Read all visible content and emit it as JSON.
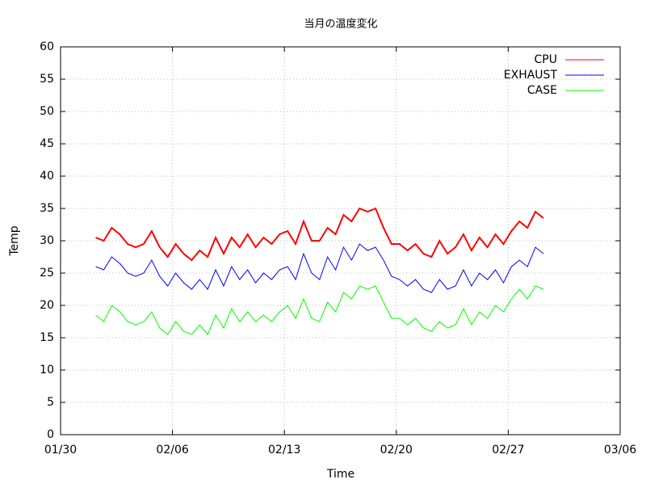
{
  "chart_data": {
    "type": "line",
    "title": "当月の温度変化",
    "x_label": "Time",
    "y_label": "Temp",
    "x": [
      2.2,
      2.7,
      3.2,
      3.7,
      4.2,
      4.7,
      5.2,
      5.7,
      6.2,
      6.7,
      7.2,
      7.7,
      8.2,
      8.7,
      9.2,
      9.7,
      10.2,
      10.7,
      11.2,
      11.7,
      12.2,
      12.7,
      13.2,
      13.7,
      14.2,
      14.7,
      15.2,
      15.7,
      16.2,
      16.7,
      17.2,
      17.7,
      18.2,
      18.7,
      19.2,
      19.7,
      20.2,
      20.7,
      21.2,
      21.7,
      22.2,
      22.7,
      23.2,
      23.7,
      24.2,
      24.7,
      25.2,
      25.7,
      26.2,
      26.7,
      27.2,
      27.7,
      28.2,
      28.7,
      29.2,
      29.7,
      30.2
    ],
    "series": [
      {
        "name": "CPU",
        "color": "#ff0000",
        "values": [
          30.5,
          30,
          32,
          31,
          29.5,
          29,
          29.5,
          31.5,
          29,
          27.5,
          29.5,
          28,
          27,
          28.5,
          27.5,
          30.5,
          28,
          30.5,
          29,
          31,
          29,
          30.5,
          29.5,
          31,
          31.5,
          29.5,
          33,
          30,
          30,
          32,
          31,
          34,
          33,
          35,
          34.5,
          35,
          32,
          29.5,
          29.5,
          28.5,
          29.5,
          28,
          27.5,
          30,
          28,
          29,
          31,
          28.5,
          30.5,
          29,
          31,
          29.5,
          31.5,
          33,
          32,
          34.5,
          33.5
        ]
      },
      {
        "name": "EXHAUST",
        "color": "#0000ff",
        "values": [
          26,
          25.5,
          27.5,
          26.5,
          25,
          24.5,
          25,
          27,
          24.5,
          23,
          25,
          23.5,
          22.5,
          24,
          22.5,
          25.5,
          23,
          26,
          24,
          25.5,
          23.5,
          25,
          24,
          25.5,
          26,
          24,
          28,
          25,
          24,
          27.5,
          25.5,
          29,
          27,
          29.5,
          28.5,
          29,
          27,
          24.5,
          24,
          23,
          24,
          22.5,
          22,
          24,
          22.5,
          23,
          25.5,
          23,
          25,
          24,
          25.5,
          23.5,
          26,
          27,
          26,
          29,
          28
        ]
      },
      {
        "name": "CASE",
        "color": "#00ff00",
        "values": [
          18.5,
          17.5,
          20,
          19,
          17.5,
          17,
          17.5,
          19,
          16.5,
          15.5,
          17.5,
          16,
          15.5,
          17,
          15.5,
          18.5,
          16.5,
          19.5,
          17.5,
          19,
          17.5,
          18.5,
          17.5,
          19,
          20,
          18,
          21,
          18,
          17.5,
          20.5,
          19,
          22,
          21,
          23,
          22.5,
          23,
          20.5,
          18,
          18,
          17,
          18,
          16.5,
          16,
          17.5,
          16.5,
          17,
          19.5,
          17,
          19,
          18,
          20,
          19,
          21,
          22.5,
          21,
          23,
          22.5
        ]
      }
    ],
    "xlim": [
      0,
      35
    ],
    "xticks": [
      {
        "value": 0,
        "label": "01/30"
      },
      {
        "value": 7,
        "label": "02/06"
      },
      {
        "value": 14,
        "label": "02/13"
      },
      {
        "value": 21,
        "label": "02/20"
      },
      {
        "value": 28,
        "label": "02/27"
      },
      {
        "value": 35,
        "label": "03/06"
      }
    ],
    "ylim": [
      0,
      60
    ],
    "yticks": [
      0,
      5,
      10,
      15,
      20,
      25,
      30,
      35,
      40,
      45,
      50,
      55,
      60
    ],
    "grid": true,
    "legend": "top-right"
  }
}
